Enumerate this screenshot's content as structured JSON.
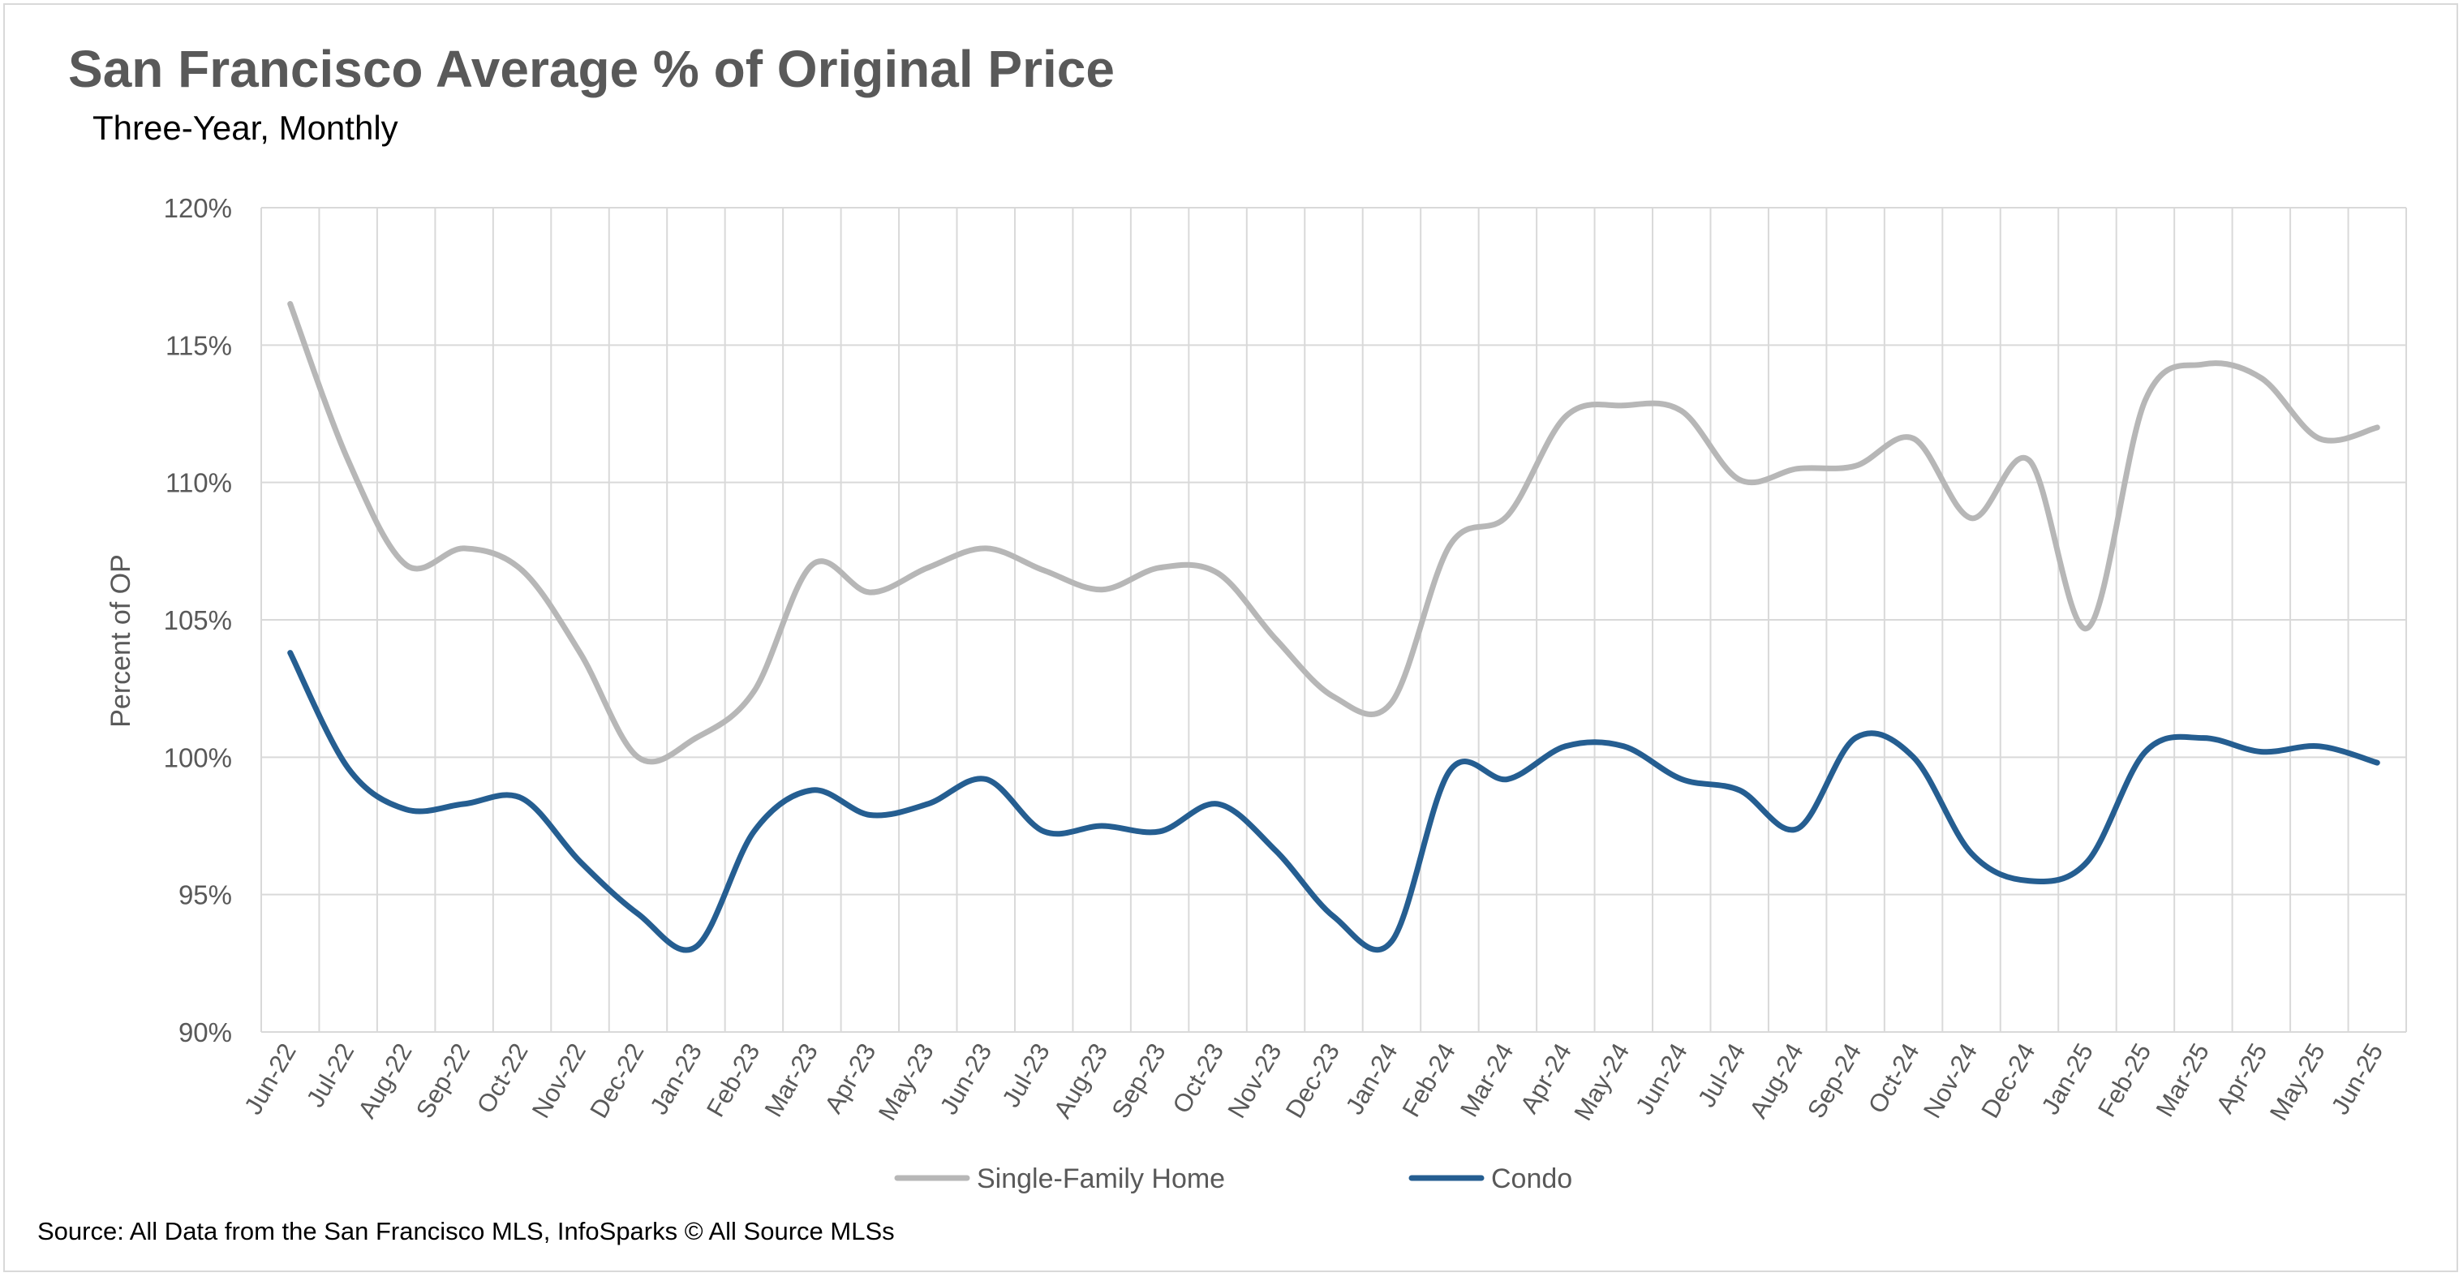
{
  "chart_data": {
    "type": "line",
    "title": "San Francisco Average % of Original Price",
    "subtitle": "Three-Year, Monthly",
    "ylabel": "Percent of OP",
    "xlabel": "",
    "ylim": [
      90,
      120
    ],
    "yticks": [
      "90%",
      "95%",
      "100%",
      "105%",
      "110%",
      "115%",
      "120%"
    ],
    "ytick_values": [
      90,
      95,
      100,
      105,
      110,
      115,
      120
    ],
    "grid": true,
    "legend_position": "bottom",
    "categories": [
      "Jun-22",
      "Jul-22",
      "Aug-22",
      "Sep-22",
      "Oct-22",
      "Nov-22",
      "Dec-22",
      "Jan-23",
      "Feb-23",
      "Mar-23",
      "Apr-23",
      "May-23",
      "Jun-23",
      "Jul-23",
      "Aug-23",
      "Sep-23",
      "Oct-23",
      "Nov-23",
      "Dec-23",
      "Jan-24",
      "Feb-24",
      "Mar-24",
      "Apr-24",
      "May-24",
      "Jun-24",
      "Jul-24",
      "Aug-24",
      "Sep-24",
      "Oct-24",
      "Nov-24",
      "Dec-24",
      "Jan-25",
      "Feb-25",
      "Mar-25",
      "Apr-25",
      "May-25",
      "Jun-25"
    ],
    "series": [
      {
        "name": "Single-Family Home",
        "color": "#b7b7b7",
        "values": [
          116.5,
          110.8,
          107.0,
          107.6,
          106.8,
          103.8,
          100.0,
          100.7,
          102.4,
          107.0,
          106.0,
          106.9,
          107.6,
          106.8,
          106.1,
          106.9,
          106.7,
          104.3,
          102.2,
          102.0,
          107.7,
          108.8,
          112.4,
          112.8,
          112.6,
          110.1,
          110.5,
          110.6,
          111.6,
          108.7,
          110.8,
          104.7,
          113.0,
          114.3,
          113.8,
          111.6,
          112.0
        ]
      },
      {
        "name": "Condo",
        "color": "#255e91",
        "values": [
          103.8,
          99.6,
          98.1,
          98.3,
          98.5,
          96.2,
          94.3,
          93.1,
          97.3,
          98.8,
          97.9,
          98.3,
          99.2,
          97.3,
          97.5,
          97.3,
          98.3,
          96.6,
          94.2,
          93.3,
          99.5,
          99.2,
          100.4,
          100.4,
          99.2,
          98.8,
          97.4,
          100.7,
          100.0,
          96.5,
          95.5,
          96.2,
          100.2,
          100.7,
          100.2,
          100.4,
          99.8
        ]
      }
    ]
  },
  "footer": {
    "source": "Source: All Data from the San Francisco MLS, InfoSparks © All Source MLSs"
  }
}
